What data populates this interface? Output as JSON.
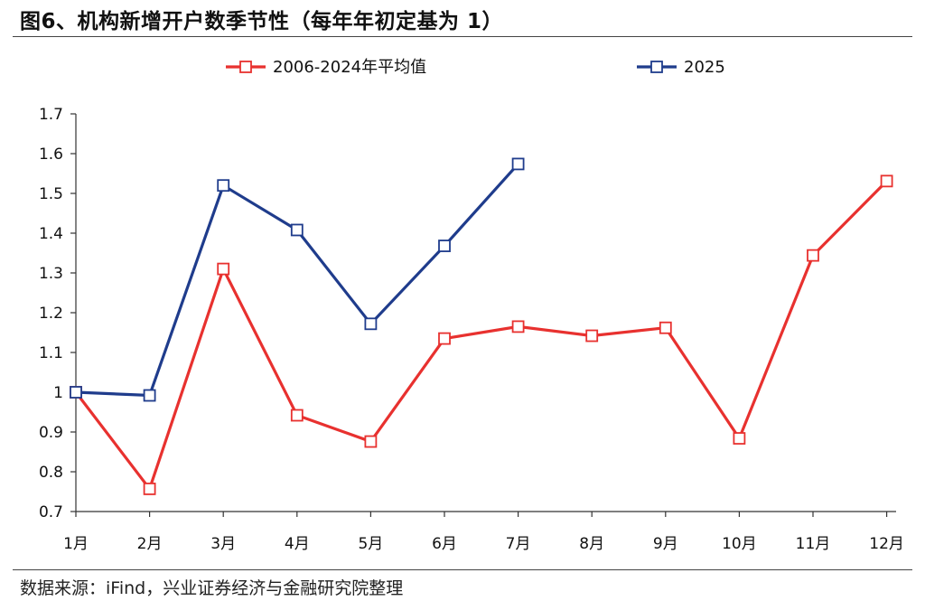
{
  "title": "图6、机构新增开户数季节性（每年年初定基为 1）",
  "source": "数据来源：iFind，兴业证券经济与金融研究院整理",
  "chart_data": {
    "type": "line",
    "title": "图6、机构新增开户数季节性（每年年初定基为 1）",
    "xlabel": "",
    "ylabel": "",
    "categories": [
      "1月",
      "2月",
      "3月",
      "4月",
      "5月",
      "6月",
      "7月",
      "8月",
      "9月",
      "10月",
      "11月",
      "12月"
    ],
    "ylim": [
      0.7,
      1.7
    ],
    "yticks": [
      "0.7",
      "0.8",
      "0.9",
      "1",
      "1.1",
      "1.2",
      "1.3",
      "1.4",
      "1.5",
      "1.6",
      "1.7"
    ],
    "grid": false,
    "legend_position": "top",
    "series": [
      {
        "name": "2006-2024年平均值",
        "color": "#e8312f",
        "values": [
          1.0,
          0.757,
          1.31,
          0.942,
          0.876,
          1.135,
          1.165,
          1.142,
          1.162,
          0.884,
          1.344,
          1.531
        ]
      },
      {
        "name": "2025",
        "color": "#1f3c8c",
        "values": [
          1.0,
          0.992,
          1.52,
          1.408,
          1.172,
          1.368,
          1.574,
          null,
          null,
          null,
          null,
          null
        ]
      }
    ]
  }
}
